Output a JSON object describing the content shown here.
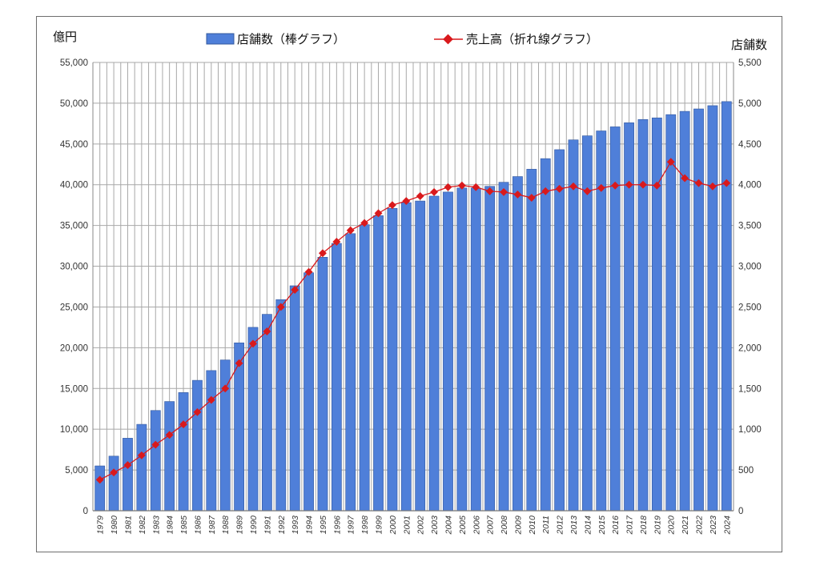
{
  "chart_data": {
    "type": "bar+line",
    "title": "",
    "y_left_label": "億円",
    "y_right_label": "店舗数",
    "y_left_range": [
      0,
      55000
    ],
    "y_right_range": [
      0,
      5500
    ],
    "y_left_ticks": [
      "0",
      "5,000",
      "10,000",
      "15,000",
      "20,000",
      "25,000",
      "30,000",
      "35,000",
      "40,000",
      "45,000",
      "50,000",
      "55,000"
    ],
    "y_right_ticks": [
      "0",
      "500",
      "1,000",
      "1,500",
      "2,000",
      "2,500",
      "3,000",
      "3,500",
      "4,000",
      "4,500",
      "5,000",
      "5,500"
    ],
    "grid": true,
    "legend_position": "top",
    "categories": [
      "1979",
      "1980",
      "1981",
      "1982",
      "1983",
      "1984",
      "1985",
      "1986",
      "1987",
      "1988",
      "1989",
      "1990",
      "1991",
      "1992",
      "1993",
      "1994",
      "1995",
      "1996",
      "1997",
      "1998",
      "1999",
      "2000",
      "2001",
      "2002",
      "2003",
      "2004",
      "2005",
      "2006",
      "2007",
      "2008",
      "2009",
      "2010",
      "2011",
      "2012",
      "2013",
      "2014",
      "2015",
      "2016",
      "2017",
      "2018",
      "2019",
      "2020",
      "2021",
      "2022",
      "2023",
      "2024"
    ],
    "series": [
      {
        "name": "店舗数（棒グラフ）",
        "type": "bar",
        "axis": "right",
        "color": "#4f7fd9",
        "values": [
          550,
          670,
          890,
          1060,
          1230,
          1340,
          1450,
          1600,
          1720,
          1850,
          2060,
          2250,
          2410,
          2590,
          2760,
          2920,
          3110,
          3280,
          3400,
          3510,
          3620,
          3710,
          3780,
          3800,
          3860,
          3910,
          3960,
          3960,
          3980,
          4030,
          4100,
          4190,
          4320,
          4430,
          4550,
          4600,
          4660,
          4710,
          4760,
          4800,
          4820,
          4860,
          4900,
          4930,
          4970,
          5020
        ]
      },
      {
        "name": "売上高（折れ線グラフ）",
        "type": "line",
        "axis": "left",
        "color": "#d9191c",
        "values": [
          3800,
          4700,
          5600,
          6800,
          8100,
          9300,
          10600,
          12100,
          13600,
          15000,
          18100,
          20500,
          22000,
          25000,
          27100,
          29300,
          31600,
          33000,
          34400,
          35300,
          36500,
          37500,
          38000,
          38600,
          39100,
          39700,
          39900,
          39700,
          39200,
          39100,
          38800,
          38400,
          39200,
          39500,
          39800,
          39200,
          39600,
          39900,
          40000,
          40000,
          39900,
          42800,
          40800,
          40200,
          39800,
          40200
        ]
      }
    ]
  },
  "colors": {
    "bar_fill": "#4f7fd9",
    "bar_edge": "#33589d",
    "line": "#d9191c",
    "grid": "#a8a8a8"
  }
}
